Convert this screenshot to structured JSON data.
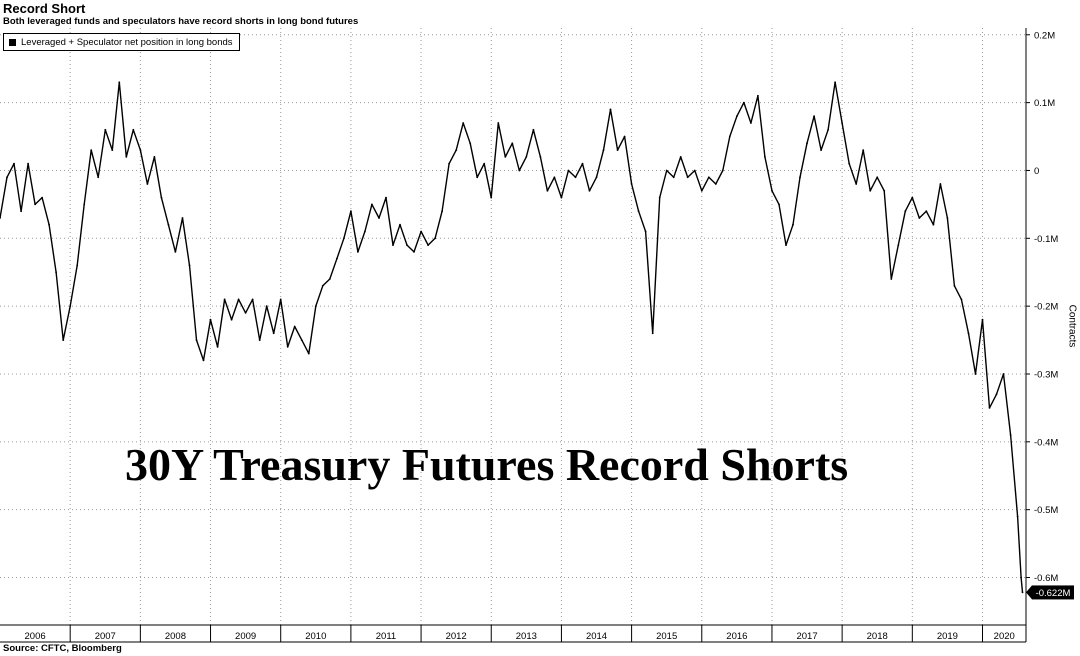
{
  "title": "Record Short",
  "subtitle": "Both leveraged funds and speculators have record shorts in long bond futures",
  "source": "Source: CFTC, Bloomberg",
  "annotation": "30Y Treasury Futures Record Shorts",
  "colors": {
    "line": "#000000",
    "grid": "#9a9a9a",
    "background": "#ffffff"
  },
  "chart_data": {
    "type": "line",
    "title": "Record Short",
    "subtitle": "Both leveraged funds and speculators have record shorts in long bond futures",
    "xlabel": "",
    "ylabel": "Contracts",
    "xlim": [
      2006.0,
      2020.62
    ],
    "ylim": [
      -0.67,
      0.21
    ],
    "y_unit": "million contracts",
    "grid": true,
    "legend_position": "top-left",
    "x_ticks": [
      "2006",
      "2007",
      "2008",
      "2009",
      "2010",
      "2011",
      "2012",
      "2013",
      "2014",
      "2015",
      "2016",
      "2017",
      "2018",
      "2019",
      "2020"
    ],
    "y_ticks": [
      {
        "value": 0.2,
        "label": "0.2M"
      },
      {
        "value": 0.1,
        "label": "0.1M"
      },
      {
        "value": 0,
        "label": "0"
      },
      {
        "value": -0.1,
        "label": "-0.1M"
      },
      {
        "value": -0.2,
        "label": "-0.2M"
      },
      {
        "value": -0.3,
        "label": "-0.3M"
      },
      {
        "value": -0.4,
        "label": "-0.4M"
      },
      {
        "value": -0.5,
        "label": "-0.5M"
      },
      {
        "value": -0.6,
        "label": "-0.6M"
      }
    ],
    "last_value_label": "-0.622M",
    "series": [
      {
        "name": "Leveraged + Speculator net position in long bonds",
        "points": [
          [
            2006.0,
            -0.07
          ],
          [
            2006.1,
            -0.01
          ],
          [
            2006.2,
            0.01
          ],
          [
            2006.3,
            -0.06
          ],
          [
            2006.4,
            0.01
          ],
          [
            2006.5,
            -0.05
          ],
          [
            2006.6,
            -0.04
          ],
          [
            2006.7,
            -0.08
          ],
          [
            2006.8,
            -0.15
          ],
          [
            2006.9,
            -0.25
          ],
          [
            2007.0,
            -0.2
          ],
          [
            2007.1,
            -0.14
          ],
          [
            2007.2,
            -0.05
          ],
          [
            2007.3,
            0.03
          ],
          [
            2007.4,
            -0.01
          ],
          [
            2007.5,
            0.06
          ],
          [
            2007.6,
            0.03
          ],
          [
            2007.7,
            0.13
          ],
          [
            2007.8,
            0.02
          ],
          [
            2007.9,
            0.06
          ],
          [
            2008.0,
            0.03
          ],
          [
            2008.1,
            -0.02
          ],
          [
            2008.2,
            0.02
          ],
          [
            2008.3,
            -0.04
          ],
          [
            2008.4,
            -0.08
          ],
          [
            2008.5,
            -0.12
          ],
          [
            2008.6,
            -0.07
          ],
          [
            2008.7,
            -0.14
          ],
          [
            2008.8,
            -0.25
          ],
          [
            2008.9,
            -0.28
          ],
          [
            2009.0,
            -0.22
          ],
          [
            2009.1,
            -0.26
          ],
          [
            2009.2,
            -0.19
          ],
          [
            2009.3,
            -0.22
          ],
          [
            2009.4,
            -0.19
          ],
          [
            2009.5,
            -0.21
          ],
          [
            2009.6,
            -0.19
          ],
          [
            2009.7,
            -0.25
          ],
          [
            2009.8,
            -0.2
          ],
          [
            2009.9,
            -0.24
          ],
          [
            2010.0,
            -0.19
          ],
          [
            2010.1,
            -0.26
          ],
          [
            2010.2,
            -0.23
          ],
          [
            2010.3,
            -0.25
          ],
          [
            2010.4,
            -0.27
          ],
          [
            2010.5,
            -0.2
          ],
          [
            2010.6,
            -0.17
          ],
          [
            2010.7,
            -0.16
          ],
          [
            2010.8,
            -0.13
          ],
          [
            2010.9,
            -0.1
          ],
          [
            2011.0,
            -0.06
          ],
          [
            2011.1,
            -0.12
          ],
          [
            2011.2,
            -0.09
          ],
          [
            2011.3,
            -0.05
          ],
          [
            2011.4,
            -0.07
          ],
          [
            2011.5,
            -0.04
          ],
          [
            2011.6,
            -0.11
          ],
          [
            2011.7,
            -0.08
          ],
          [
            2011.8,
            -0.11
          ],
          [
            2011.9,
            -0.12
          ],
          [
            2012.0,
            -0.09
          ],
          [
            2012.1,
            -0.11
          ],
          [
            2012.2,
            -0.1
          ],
          [
            2012.3,
            -0.06
          ],
          [
            2012.4,
            0.01
          ],
          [
            2012.5,
            0.03
          ],
          [
            2012.6,
            0.07
          ],
          [
            2012.7,
            0.04
          ],
          [
            2012.8,
            -0.01
          ],
          [
            2012.9,
            0.01
          ],
          [
            2013.0,
            -0.04
          ],
          [
            2013.1,
            0.07
          ],
          [
            2013.2,
            0.02
          ],
          [
            2013.3,
            0.04
          ],
          [
            2013.4,
            0.0
          ],
          [
            2013.5,
            0.02
          ],
          [
            2013.6,
            0.06
          ],
          [
            2013.7,
            0.02
          ],
          [
            2013.8,
            -0.03
          ],
          [
            2013.9,
            -0.01
          ],
          [
            2014.0,
            -0.04
          ],
          [
            2014.1,
            0.0
          ],
          [
            2014.2,
            -0.01
          ],
          [
            2014.3,
            0.01
          ],
          [
            2014.4,
            -0.03
          ],
          [
            2014.5,
            -0.01
          ],
          [
            2014.6,
            0.03
          ],
          [
            2014.7,
            0.09
          ],
          [
            2014.8,
            0.03
          ],
          [
            2014.9,
            0.05
          ],
          [
            2015.0,
            -0.02
          ],
          [
            2015.1,
            -0.06
          ],
          [
            2015.2,
            -0.09
          ],
          [
            2015.3,
            -0.24
          ],
          [
            2015.4,
            -0.04
          ],
          [
            2015.5,
            0.0
          ],
          [
            2015.6,
            -0.01
          ],
          [
            2015.7,
            0.02
          ],
          [
            2015.8,
            -0.01
          ],
          [
            2015.9,
            0.0
          ],
          [
            2016.0,
            -0.03
          ],
          [
            2016.1,
            -0.01
          ],
          [
            2016.2,
            -0.02
          ],
          [
            2016.3,
            0.0
          ],
          [
            2016.4,
            0.05
          ],
          [
            2016.5,
            0.08
          ],
          [
            2016.6,
            0.1
          ],
          [
            2016.7,
            0.07
          ],
          [
            2016.8,
            0.11
          ],
          [
            2016.9,
            0.02
          ],
          [
            2017.0,
            -0.03
          ],
          [
            2017.1,
            -0.05
          ],
          [
            2017.2,
            -0.11
          ],
          [
            2017.3,
            -0.08
          ],
          [
            2017.4,
            -0.01
          ],
          [
            2017.5,
            0.04
          ],
          [
            2017.6,
            0.08
          ],
          [
            2017.7,
            0.03
          ],
          [
            2017.8,
            0.06
          ],
          [
            2017.9,
            0.13
          ],
          [
            2018.0,
            0.07
          ],
          [
            2018.1,
            0.01
          ],
          [
            2018.2,
            -0.02
          ],
          [
            2018.3,
            0.03
          ],
          [
            2018.4,
            -0.03
          ],
          [
            2018.5,
            -0.01
          ],
          [
            2018.6,
            -0.03
          ],
          [
            2018.7,
            -0.16
          ],
          [
            2018.8,
            -0.11
          ],
          [
            2018.9,
            -0.06
          ],
          [
            2019.0,
            -0.04
          ],
          [
            2019.1,
            -0.07
          ],
          [
            2019.2,
            -0.06
          ],
          [
            2019.3,
            -0.08
          ],
          [
            2019.4,
            -0.02
          ],
          [
            2019.5,
            -0.07
          ],
          [
            2019.6,
            -0.17
          ],
          [
            2019.7,
            -0.19
          ],
          [
            2019.8,
            -0.24
          ],
          [
            2019.9,
            -0.3
          ],
          [
            2020.0,
            -0.22
          ],
          [
            2020.1,
            -0.35
          ],
          [
            2020.2,
            -0.33
          ],
          [
            2020.3,
            -0.3
          ],
          [
            2020.4,
            -0.39
          ],
          [
            2020.5,
            -0.51
          ],
          [
            2020.55,
            -0.6
          ],
          [
            2020.57,
            -0.622
          ]
        ]
      }
    ]
  }
}
